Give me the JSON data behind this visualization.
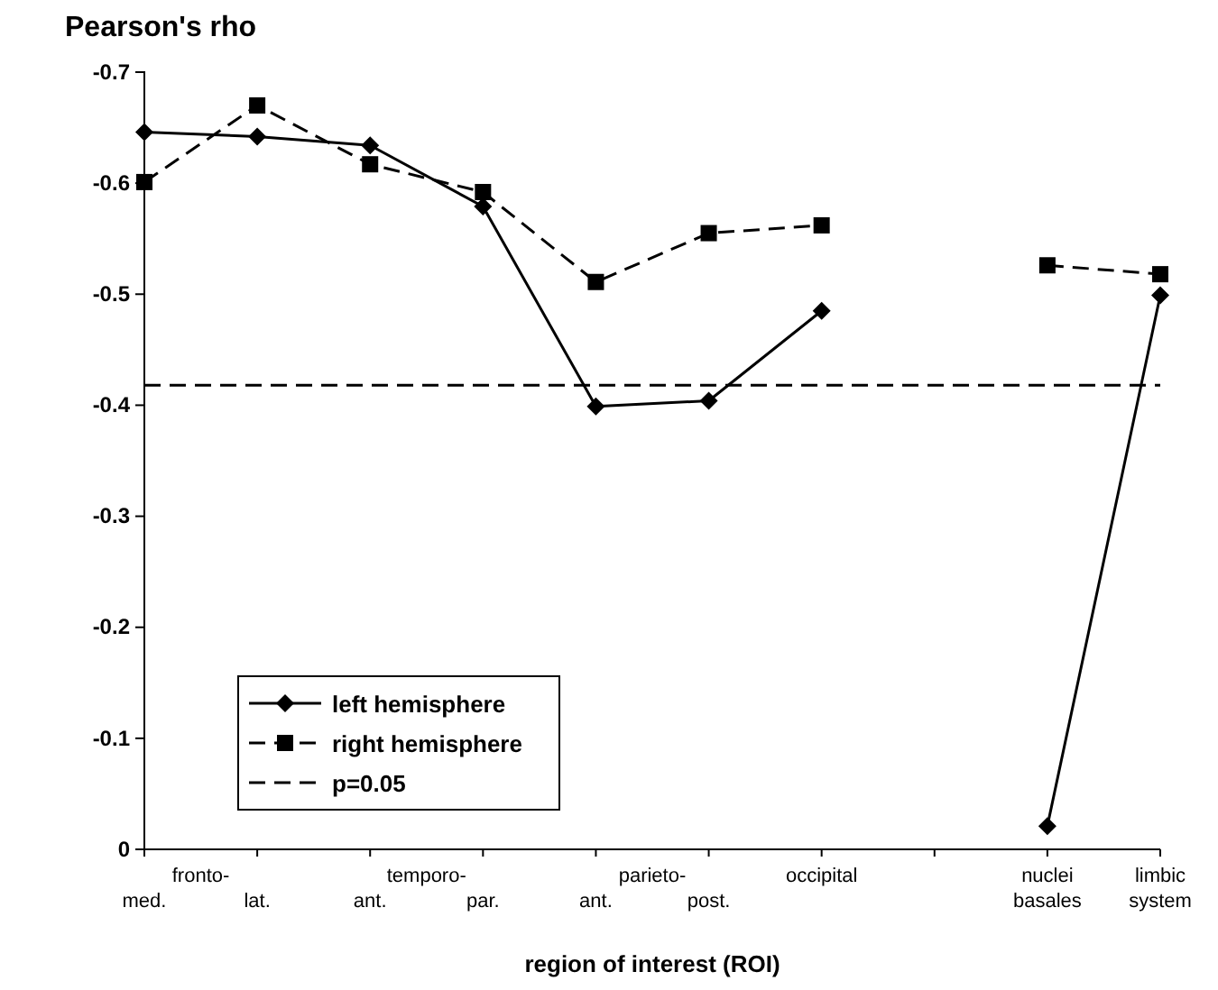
{
  "chart_data": {
    "type": "line",
    "ylabel": "Pearson's rho",
    "xlabel": "region of interest (ROI)",
    "categories": [
      "med.",
      "lat.",
      "ant.",
      "par.",
      "ant.",
      "post.",
      "occipital",
      null,
      "nuclei basales",
      "limbic system"
    ],
    "annotations": [
      "fronto-",
      "temporo-",
      "parieto-"
    ],
    "ylim": [
      0,
      -0.7
    ],
    "yticks": [
      0,
      -0.1,
      -0.2,
      -0.3,
      -0.4,
      -0.5,
      -0.6,
      -0.7
    ],
    "grid": false,
    "legend": "bottom left",
    "series": [
      {
        "name": "left hemisphere",
        "color": "#000000",
        "marker": "diamond",
        "line_style": "solid",
        "values": [
          -0.646,
          -0.642,
          -0.634,
          -0.579,
          -0.399,
          -0.404,
          -0.485,
          null,
          -0.021,
          -0.499
        ]
      },
      {
        "name": "right hemisphere",
        "color": "#000000",
        "marker": "square",
        "line_style": "dashed",
        "values": [
          -0.601,
          -0.67,
          -0.617,
          -0.592,
          -0.511,
          -0.555,
          -0.562,
          null,
          -0.526,
          -0.518
        ]
      },
      {
        "name": "p=0.05",
        "type": "line",
        "color": "#000000",
        "marker": "none",
        "line_style": "dashed",
        "values": [
          -0.418,
          -0.418,
          -0.418,
          -0.418,
          -0.418,
          -0.418,
          -0.418,
          -0.418,
          -0.418,
          -0.418
        ]
      }
    ]
  }
}
